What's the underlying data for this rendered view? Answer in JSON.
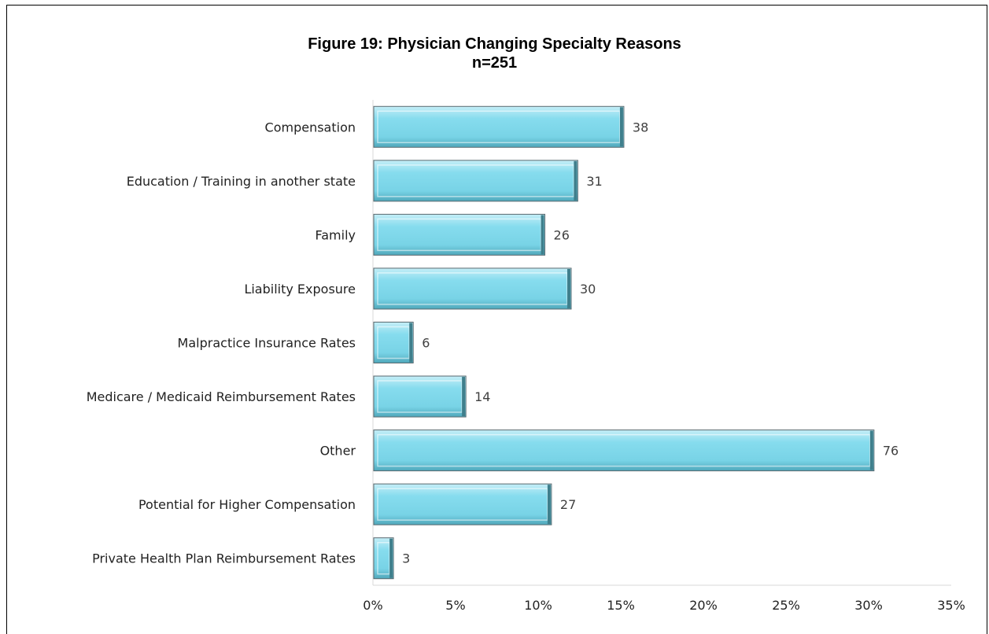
{
  "chart_data": {
    "type": "bar",
    "orientation": "horizontal",
    "title": "Figure 19: Physician Changing Specialty Reasons",
    "subtitle": "n=251",
    "n": 251,
    "categories": [
      "Compensation",
      "Education / Training in another state",
      "Family",
      "Liability Exposure",
      "Malpractice Insurance Rates",
      "Medicare / Medicaid Reimbursement Rates",
      "Other",
      "Potential for Higher Compensation",
      "Private Health Plan Reimbursement Rates"
    ],
    "values": [
      38,
      31,
      26,
      30,
      6,
      14,
      76,
      27,
      3
    ],
    "xlim": [
      0,
      0.35
    ],
    "x_ticks": [
      0,
      0.05,
      0.1,
      0.15,
      0.2,
      0.25,
      0.3,
      0.35
    ],
    "x_tick_labels": [
      "0%",
      "5%",
      "10%",
      "15%",
      "20%",
      "25%",
      "30%",
      "35%"
    ],
    "xlabel": "",
    "ylabel": "",
    "grid": false,
    "legend": "none",
    "bar_color": "#7fd8ea"
  }
}
